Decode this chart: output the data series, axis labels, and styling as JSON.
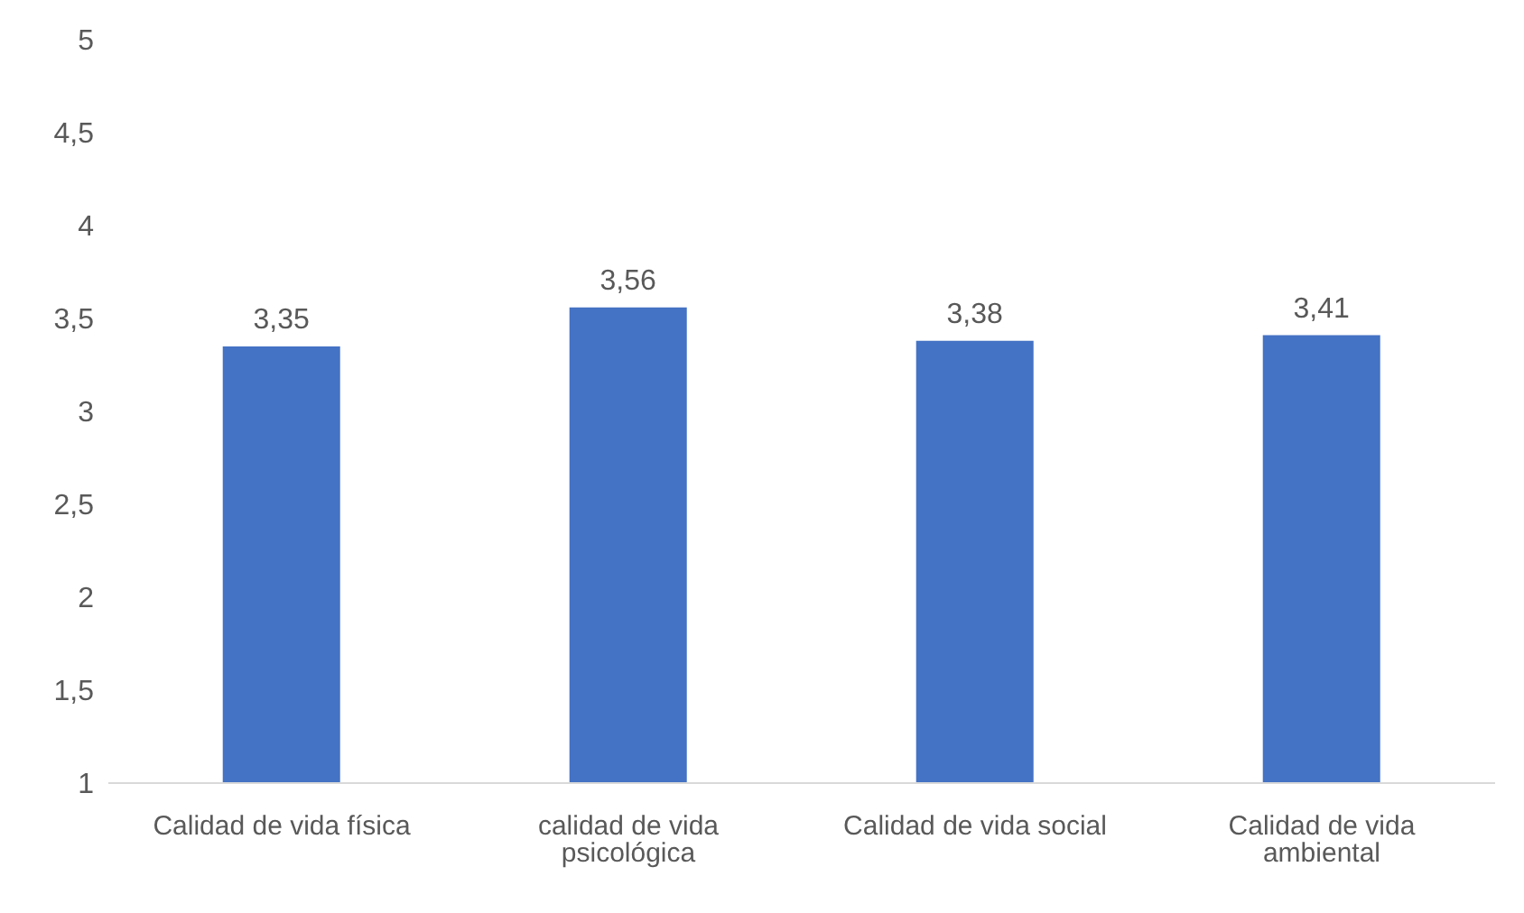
{
  "chart_data": {
    "type": "bar",
    "categories": [
      "Calidad de vida física",
      "calidad de vida psicológica",
      "Calidad de vida social",
      "Calidad de vida ambiental"
    ],
    "values": [
      3.35,
      3.56,
      3.38,
      3.41
    ],
    "value_labels": [
      "3,35",
      "3,56",
      "3,38",
      "3,41"
    ],
    "color": "#4472c4",
    "ylim": [
      1,
      5
    ],
    "yticks": [
      1,
      {
        "value": 1.5,
        "label": "1,5"
      },
      2,
      {
        "value": 2.5,
        "label": "2,5"
      },
      3,
      {
        "value": 3.5,
        "label": "3,5"
      },
      4,
      {
        "value": 4.5,
        "label": "4,5"
      },
      5
    ]
  }
}
